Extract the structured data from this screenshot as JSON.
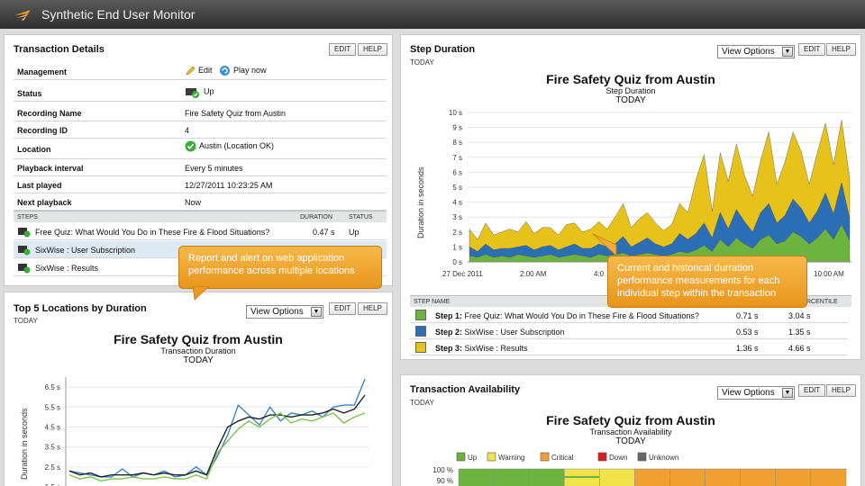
{
  "app": {
    "title": "Synthetic End User Monitor"
  },
  "buttons": {
    "edit": "EDIT",
    "help": "HELP",
    "view_options": "View Options",
    "dropdown_glyph": "▼"
  },
  "transaction_details": {
    "title": "Transaction Details",
    "rows": [
      {
        "label": "Management",
        "edit_label": "Edit",
        "play_label": "Play now"
      },
      {
        "label": "Status",
        "value": "Up"
      },
      {
        "label": "Recording Name",
        "value": "Fire Safety Quiz from Austin"
      },
      {
        "label": "Recording ID",
        "value": "4"
      },
      {
        "label": "Location",
        "value": "Austin (Location OK)"
      },
      {
        "label": "Playback interval",
        "value": "Every 5 minutes"
      },
      {
        "label": "Last played",
        "value": "12/27/2011 10:23:25 AM"
      },
      {
        "label": "Next playback",
        "value": "Now"
      }
    ],
    "steps_header": {
      "steps": "STEPS",
      "duration": "DURATION",
      "status": "STATUS"
    },
    "steps": [
      {
        "name": "Free Quiz: What Would You Do in These Fire & Flood Situations?",
        "duration": "0.47 s",
        "status": "Up"
      },
      {
        "name": "SixWise : User Subscription",
        "duration": "",
        "status": ""
      },
      {
        "name": "SixWise : Results",
        "duration": "",
        "status": ""
      }
    ]
  },
  "callouts": {
    "left": "Report and alert on web application performance across multiple locations",
    "right": "Current and historical durration performance measurements for each individual step within the transaction"
  },
  "top5": {
    "title": "Top 5 Locations by Duration",
    "today": "TODAY",
    "chart_data": {
      "type": "line",
      "title": "Fire Safety Quiz from Austin",
      "subtitle": "Transaction Duration",
      "period": "TODAY",
      "ylabel": "Duration in seconds",
      "ylim": [
        1.5,
        7
      ],
      "yticks": [
        "6.5 s",
        "5.5 s",
        "4.5 s",
        "3.5 s",
        "2.5 s",
        "1.5 s"
      ],
      "ytick_values": [
        6.5,
        5.5,
        4.5,
        3.5,
        2.5,
        1.5
      ],
      "series": [
        {
          "name": "blue",
          "color": "#3a87c8",
          "values": [
            2.3,
            2.2,
            2.1,
            2.0,
            2.0,
            2.4,
            2.0,
            2.2,
            2.1,
            2.3,
            2.0,
            2.1,
            2.5,
            2.1,
            3.0,
            4.1,
            5.6,
            5.1,
            4.6,
            5.5,
            4.8,
            5.2,
            5.1,
            5.3,
            5.0,
            5.5,
            5.6,
            5.6,
            6.9
          ]
        },
        {
          "name": "black",
          "color": "#222222",
          "values": [
            2.3,
            2.1,
            2.2,
            2.0,
            2.1,
            2.1,
            2.1,
            2.2,
            2.1,
            2.2,
            2.1,
            2.1,
            2.3,
            2.1,
            3.4,
            4.5,
            4.8,
            5.0,
            4.9,
            5.1,
            5.1,
            5.0,
            5.1,
            5.1,
            5.2,
            5.4,
            5.2,
            5.4,
            6.1
          ]
        },
        {
          "name": "green",
          "color": "#7dc34a",
          "values": [
            2.1,
            1.9,
            2.0,
            1.8,
            1.9,
            1.9,
            2.0,
            1.9,
            1.9,
            2.0,
            1.9,
            1.9,
            2.1,
            1.9,
            3.2,
            3.8,
            4.4,
            4.8,
            4.5,
            4.9,
            5.2,
            4.7,
            4.9,
            4.8,
            5.0,
            5.2,
            4.7,
            5.0,
            5.2
          ]
        }
      ]
    }
  },
  "step_duration": {
    "title": "Step Duration",
    "today": "TODAY",
    "chart_data": {
      "type": "area",
      "title": "Fire Safety Quiz from Austin",
      "subtitle": "Step Duration",
      "period": "TODAY",
      "ylabel": "Duration in seconds",
      "ylim": [
        0,
        10
      ],
      "yticks": [
        "10 s",
        "9 s",
        "8 s",
        "7 s",
        "6 s",
        "5 s",
        "4 s",
        "3 s",
        "2 s",
        "1 s",
        "0 s"
      ],
      "ytick_values": [
        10,
        9,
        8,
        7,
        6,
        5,
        4,
        3,
        2,
        1,
        0
      ],
      "xticks": [
        "27 Dec 2011",
        "2:00 AM",
        "4:0",
        "10:00 AM"
      ],
      "series": [
        {
          "name": "Step 1",
          "color": "#6db33f",
          "values": [
            0.4,
            0.3,
            0.5,
            0.3,
            0.4,
            0.3,
            0.5,
            0.4,
            0.3,
            0.4,
            0.5,
            0.3,
            0.4,
            0.5,
            0.4,
            0.3,
            0.5,
            0.4,
            0.5,
            0.6,
            0.4,
            0.5,
            0.6,
            0.5,
            0.4,
            0.5,
            0.7,
            0.6,
            0.8,
            1.1,
            0.7,
            1.5,
            1.0,
            1.6,
            1.2,
            0.9,
            1.5,
            1.8,
            1.2,
            1.4,
            2.0,
            1.7,
            1.2,
            1.6,
            2.2,
            1.5,
            2.5,
            1.4
          ]
        },
        {
          "name": "Step 2",
          "color": "#2a6fb5",
          "values": [
            0.6,
            0.4,
            0.7,
            0.5,
            0.5,
            0.6,
            0.5,
            0.7,
            0.5,
            0.6,
            0.6,
            0.5,
            0.6,
            0.7,
            0.5,
            0.6,
            0.7,
            0.6,
            0.7,
            1.1,
            0.6,
            0.8,
            1.0,
            0.7,
            0.6,
            0.7,
            1.2,
            0.9,
            1.1,
            1.5,
            0.9,
            1.8,
            1.2,
            1.9,
            1.5,
            1.1,
            1.8,
            2.1,
            1.4,
            1.7,
            2.2,
            1.9,
            1.4,
            1.8,
            2.4,
            1.7,
            2.8,
            1.5
          ]
        },
        {
          "name": "Step 3",
          "color": "#e6c21a",
          "values": [
            1.2,
            0.8,
            1.4,
            1.0,
            1.1,
            1.3,
            1.0,
            1.6,
            1.1,
            1.3,
            1.2,
            1.0,
            1.5,
            1.4,
            1.1,
            1.3,
            1.5,
            1.2,
            1.8,
            2.2,
            1.3,
            1.6,
            1.7,
            1.4,
            1.1,
            1.3,
            2.0,
            1.8,
            3.6,
            4.6,
            1.8,
            4.0,
            3.2,
            4.4,
            3.1,
            2.4,
            3.5,
            4.8,
            2.6,
            3.6,
            4.5,
            3.8,
            2.6,
            3.9,
            4.7,
            3.3,
            4.2,
            2.7
          ]
        }
      ]
    },
    "table_head": {
      "step_name": "STEP NAME",
      "percentile": "RCENTILE"
    },
    "steps": [
      {
        "label": "Step 1:",
        "name": "Free Quiz: What Would You Do in These Fire & Flood Situations?",
        "avg": "0.71 s",
        "pct": "3.04 s",
        "color": "#6db33f"
      },
      {
        "label": "Step 2:",
        "name": "SixWise : User Subscription",
        "avg": "0.53 s",
        "pct": "1.35 s",
        "color": "#2a6fb5"
      },
      {
        "label": "Step 3:",
        "name": "SixWise : Results",
        "avg": "1.36 s",
        "pct": "4.66 s",
        "color": "#e6c21a"
      }
    ]
  },
  "availability": {
    "title": "Transaction Availability",
    "today": "TODAY",
    "chart_data": {
      "type": "bar",
      "title": "Fire Safety Quiz from Austin",
      "subtitle": "Transaction Availability",
      "period": "TODAY",
      "legend": [
        {
          "name": "Up",
          "color": "#6db33f"
        },
        {
          "name": "Warning",
          "color": "#f1e34a"
        },
        {
          "name": "Critical",
          "color": "#f0a030"
        },
        {
          "name": "Down",
          "color": "#d81d1d"
        },
        {
          "name": "Unknown",
          "color": "#666666"
        }
      ],
      "yticks": [
        "100 %",
        "90 %"
      ],
      "bar_colors": [
        "#6db33f",
        "#6db33f",
        "#6db33f",
        "#f1e34a",
        "#f1e34a",
        "#f0a030",
        "#f0a030",
        "#f0a030",
        "#f0a030",
        "#f0a030",
        "#f0a030"
      ],
      "second_bar_top": [
        "#6db33f",
        "#6db33f",
        "#6db33f",
        "#6db33f",
        "#f1e34a",
        "#f0a030",
        "#f0a030",
        "#f0a030",
        "#f0a030",
        "#f0a030",
        "#f0a030"
      ]
    }
  }
}
